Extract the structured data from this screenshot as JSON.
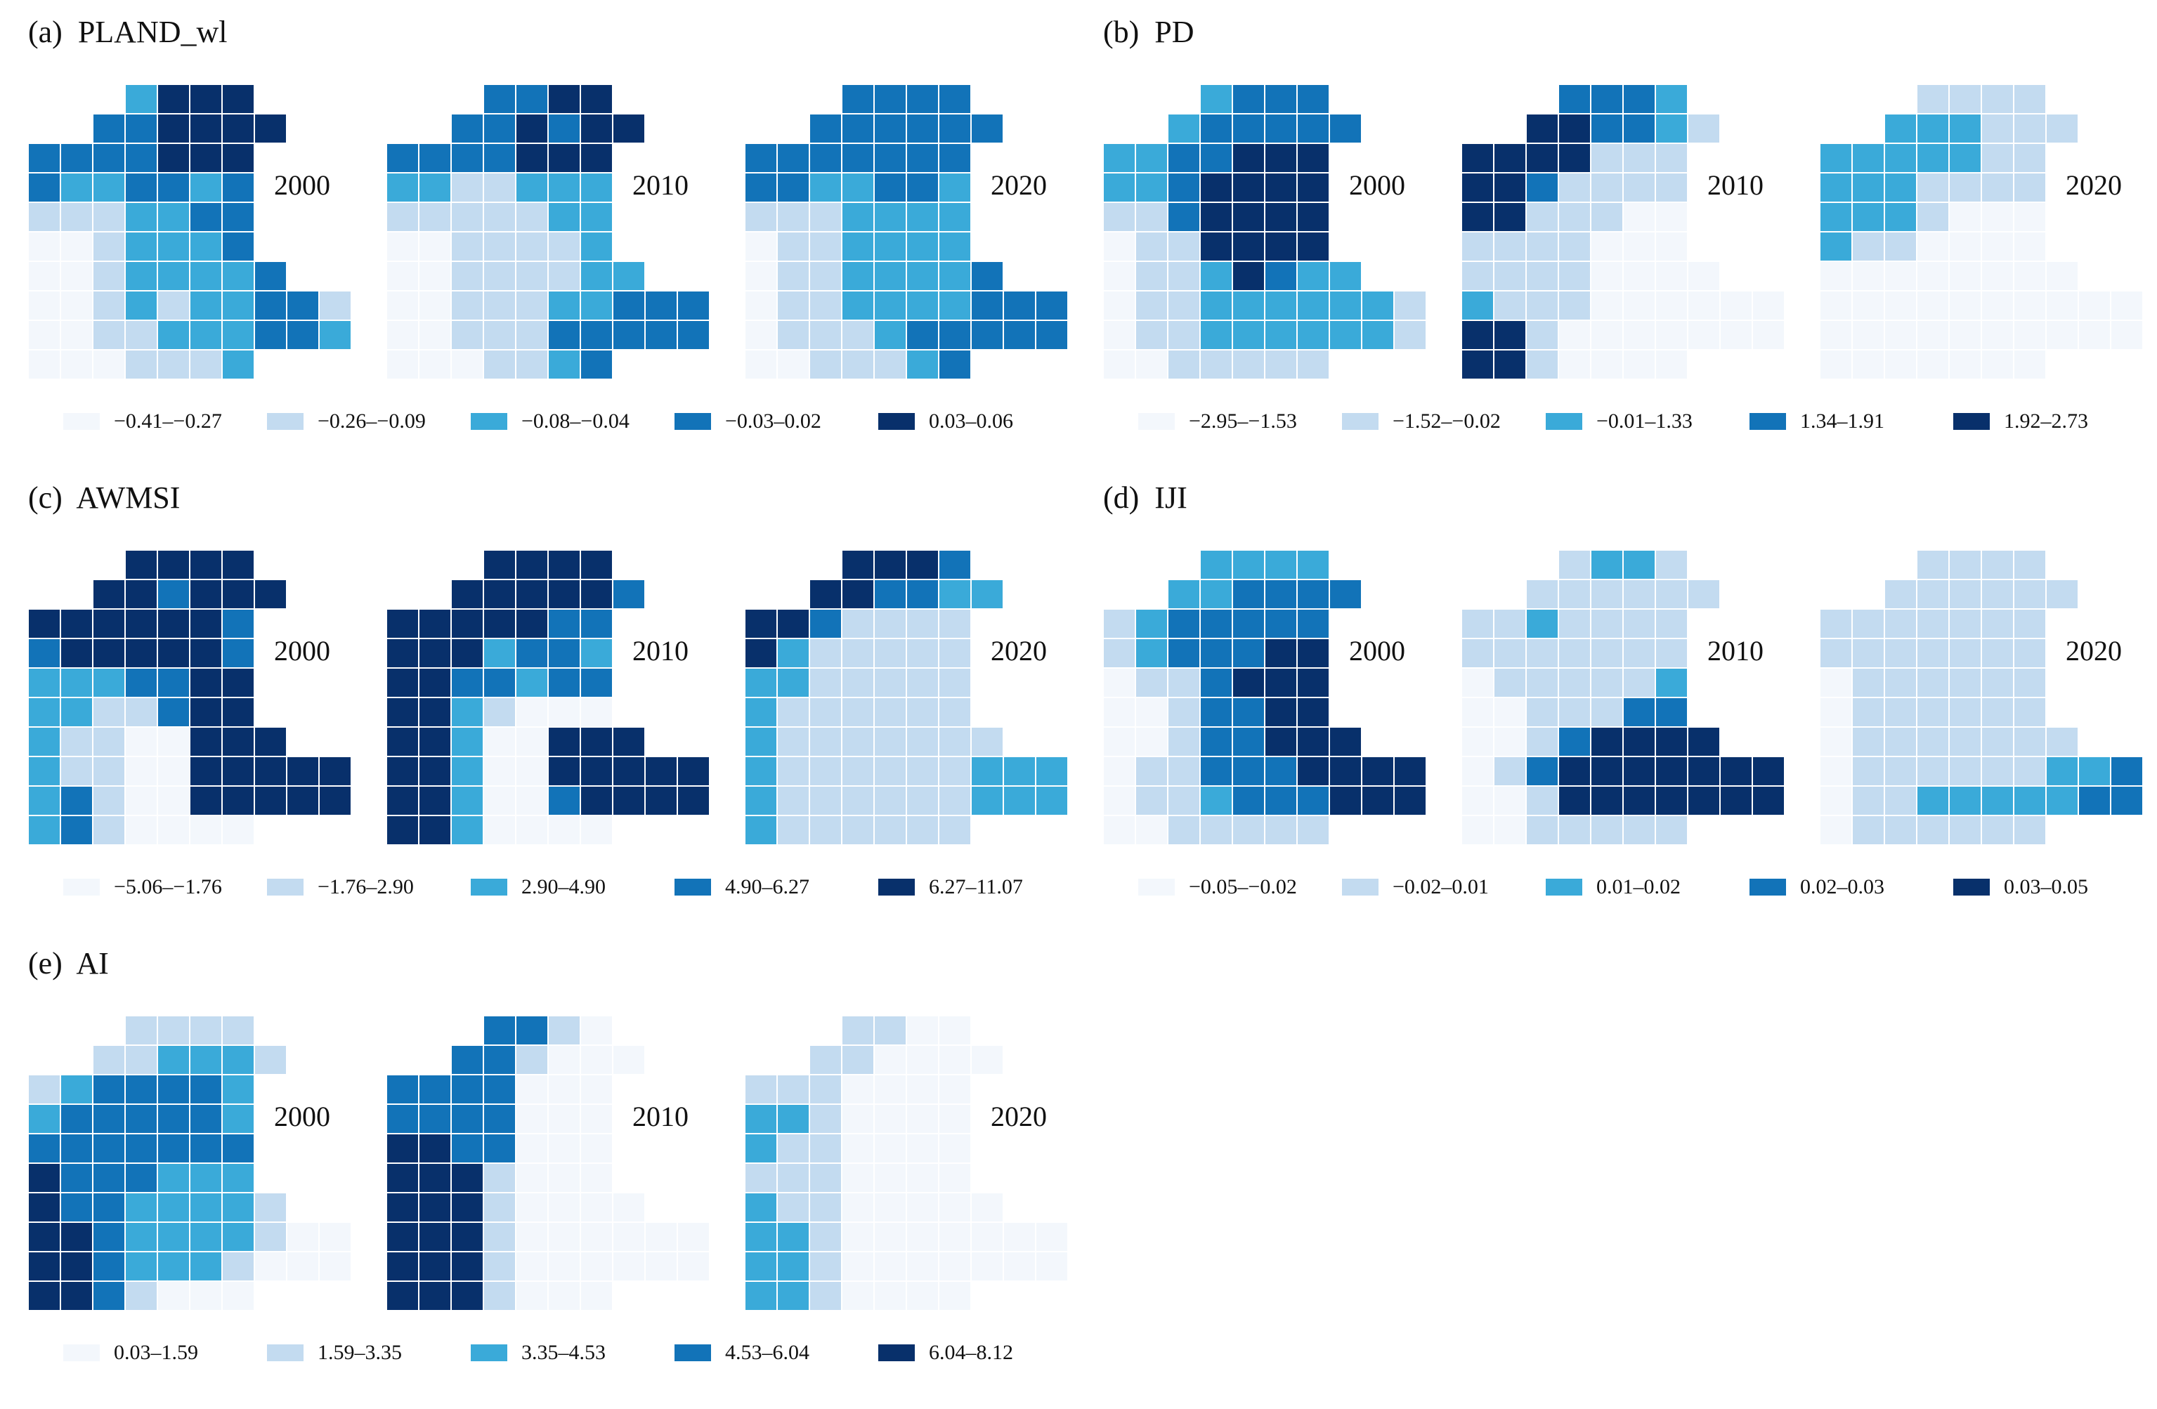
{
  "palette": [
    "#f3f7fc",
    "#c3dbf0",
    "#3aaad9",
    "#1273b8",
    "#08306b"
  ],
  "years": [
    "2000",
    "2010",
    "2020"
  ],
  "panels": [
    {
      "label": "(a)  PLAND_wl",
      "legend": [
        "−0.41–−0.27",
        "−0.26–−0.09",
        "−0.08–−0.04",
        "−0.03–0.02",
        "0.03–0.06"
      ],
      "maps": [
        {
          "year": "2000",
          "grid": [
            "...2444...",
            "..334444..",
            "3333444....",
            "3223323....",
            "1112233....",
            "0012223....",
            "00122223...",
            "0012122331.",
            "0011222332.",
            "0001112....."
          ]
        },
        {
          "year": "2010",
          "grid": [
            "...3344...",
            "..334344..",
            "3333444....",
            "2211222....",
            "1111122....",
            "0011112....",
            "00111122...",
            "0011122333.",
            "0011133333.",
            "0001123....."
          ]
        },
        {
          "year": "2020",
          "grid": [
            "...3333...",
            "..333333..",
            "3333333....",
            "3322332....",
            "1112222....",
            "0112222....",
            "01122223...",
            "0112222333.",
            "0111233333.",
            "0011123....."
          ]
        }
      ]
    },
    {
      "label": "(b)  PD",
      "legend": [
        "−2.95–−1.53",
        "−1.52–−0.02",
        "−0.01–1.33",
        "1.34–1.91",
        "1.92–2.73"
      ],
      "maps": [
        {
          "year": "2000",
          "grid": [
            "...2333...",
            "..233333..",
            "2233444....",
            "2234444....",
            "1134444....",
            "0114444....",
            "01124322...",
            "0112222221.",
            "0112222221.",
            "0011111....."
          ]
        },
        {
          "year": "2010",
          "grid": [
            "...3332...",
            "..443321..",
            "4444111....",
            "4431111....",
            "4411100....",
            "1111000....",
            "11110000...",
            "2111000000.",
            "4410000000.",
            "4410000....."
          ]
        },
        {
          "year": "2020",
          "grid": [
            "...1111...",
            "..222111..",
            "2222211....",
            "2221111....",
            "2221000....",
            "2110000....",
            "00000000...",
            "0000000000.",
            "0000000000.",
            "0000000....."
          ]
        }
      ]
    },
    {
      "label": "(c)  AWMSI",
      "legend": [
        "−5.06–−1.76",
        "−1.76–2.90",
        "2.90–4.90",
        "4.90–6.27",
        "6.27–11.07"
      ],
      "maps": [
        {
          "year": "2000",
          "grid": [
            "...4444...",
            "..443444..",
            "4444443....",
            "3444443....",
            "2223344....",
            "2211344....",
            "21100444...",
            "2110044444.",
            "2310044444.",
            "2310000....."
          ]
        },
        {
          "year": "2010",
          "grid": [
            "...4444...",
            "..444443..",
            "4444433....",
            "4442332....",
            "4433233....",
            "4421000....",
            "44200444...",
            "4420044444.",
            "4420034444.",
            "4420000....."
          ]
        },
        {
          "year": "2020",
          "grid": [
            "...4443...",
            "..443322..",
            "4431111....",
            "4211111....",
            "2211111....",
            "2111111....",
            "21111111...",
            "2111111222.",
            "2111111222.",
            "2111111....."
          ]
        }
      ]
    },
    {
      "label": "(d)  IJI",
      "legend": [
        "−0.05–−0.02",
        "−0.02–0.01",
        "0.01–0.02",
        "0.02–0.03",
        "0.03–0.05"
      ],
      "maps": [
        {
          "year": "2000",
          "grid": [
            "...2222...",
            "..223333..",
            "1233333....",
            "1233344....",
            "0113444....",
            "0013344....",
            "00133444...",
            "0113334444.",
            "0112333444.",
            "0011111....."
          ]
        },
        {
          "year": "2010",
          "grid": [
            "...1221...",
            "..111111..",
            "1121111....",
            "1111111....",
            "0111112....",
            "0011133....",
            "00134444...",
            "0134444444.",
            "0014444444.",
            "0011111....."
          ]
        },
        {
          "year": "2020",
          "grid": [
            "...1111...",
            "..111111..",
            "1111111....",
            "1111111....",
            "0111111....",
            "0111111....",
            "01111111...",
            "0111111223.",
            "0112222233.",
            "0111111....."
          ]
        }
      ]
    },
    {
      "label": "(e)  AI",
      "legend": [
        "0.03–1.59",
        "1.59–3.35",
        "3.35–4.53",
        "4.53–6.04",
        "6.04–8.12"
      ],
      "maps": [
        {
          "year": "2000",
          "grid": [
            "...1111...",
            "..112221..",
            "1233332....",
            "2333332....",
            "3333333....",
            "4333222....",
            "43322221...",
            "4432222100.",
            "4432221000.",
            "4431000....."
          ]
        },
        {
          "year": "2010",
          "grid": [
            "...3310...",
            "..331000..",
            "3333000....",
            "3333000....",
            "4433000....",
            "4441000....",
            "44410000...",
            "4441000000.",
            "4441000000.",
            "4441000....."
          ]
        },
        {
          "year": "2020",
          "grid": [
            "...1100...",
            "..110000..",
            "1110000....",
            "2210000....",
            "2110000....",
            "1110000....",
            "21100000...",
            "2210000000.",
            "2210000000.",
            "2210000....."
          ]
        }
      ]
    }
  ]
}
